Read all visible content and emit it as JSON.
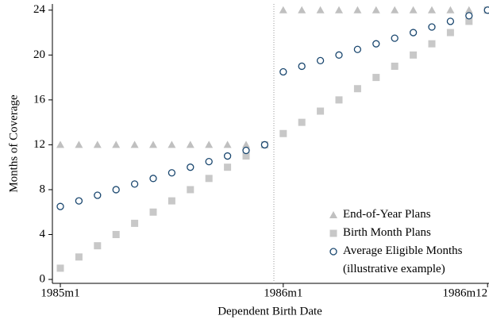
{
  "chart_data": {
    "type": "scatter",
    "x_label": "Dependent Birth Date",
    "y_label": "Months of Coverage",
    "categories": [
      "1985m1",
      null,
      null,
      null,
      null,
      null,
      null,
      null,
      null,
      null,
      null,
      null,
      "1986m1",
      null,
      null,
      null,
      null,
      null,
      null,
      null,
      null,
      null,
      null,
      "1986m12"
    ],
    "series": [
      {
        "name": "End-of-Year Plans",
        "color": "#c0c0c0",
        "marker": "triangle",
        "values": [
          12,
          12,
          12,
          12,
          12,
          12,
          12,
          12,
          12,
          12,
          12,
          12,
          24,
          24,
          24,
          24,
          24,
          24,
          24,
          24,
          24,
          24,
          24,
          24
        ]
      },
      {
        "name": "Birth Month Plans",
        "color": "#c8c8c8",
        "marker": "square",
        "values": [
          1,
          2,
          3,
          4,
          5,
          6,
          7,
          8,
          9,
          10,
          11,
          12,
          13,
          14,
          15,
          16,
          17,
          18,
          19,
          20,
          21,
          22,
          23,
          24
        ]
      },
      {
        "name": "Average Eligible Months (illustrative example)",
        "color": "#1a476f",
        "marker": "circle",
        "values": [
          6.5,
          7,
          7.5,
          8,
          8.5,
          9,
          9.5,
          10,
          10.5,
          11,
          11.5,
          12,
          18.5,
          19,
          19.5,
          20,
          20.5,
          21,
          21.5,
          22,
          22.5,
          23,
          23.5,
          24
        ]
      }
    ],
    "ylim": [
      -0.35,
      24.55
    ],
    "yticks": [
      0,
      4,
      8,
      12,
      16,
      20,
      24
    ],
    "legend": "lower right"
  }
}
